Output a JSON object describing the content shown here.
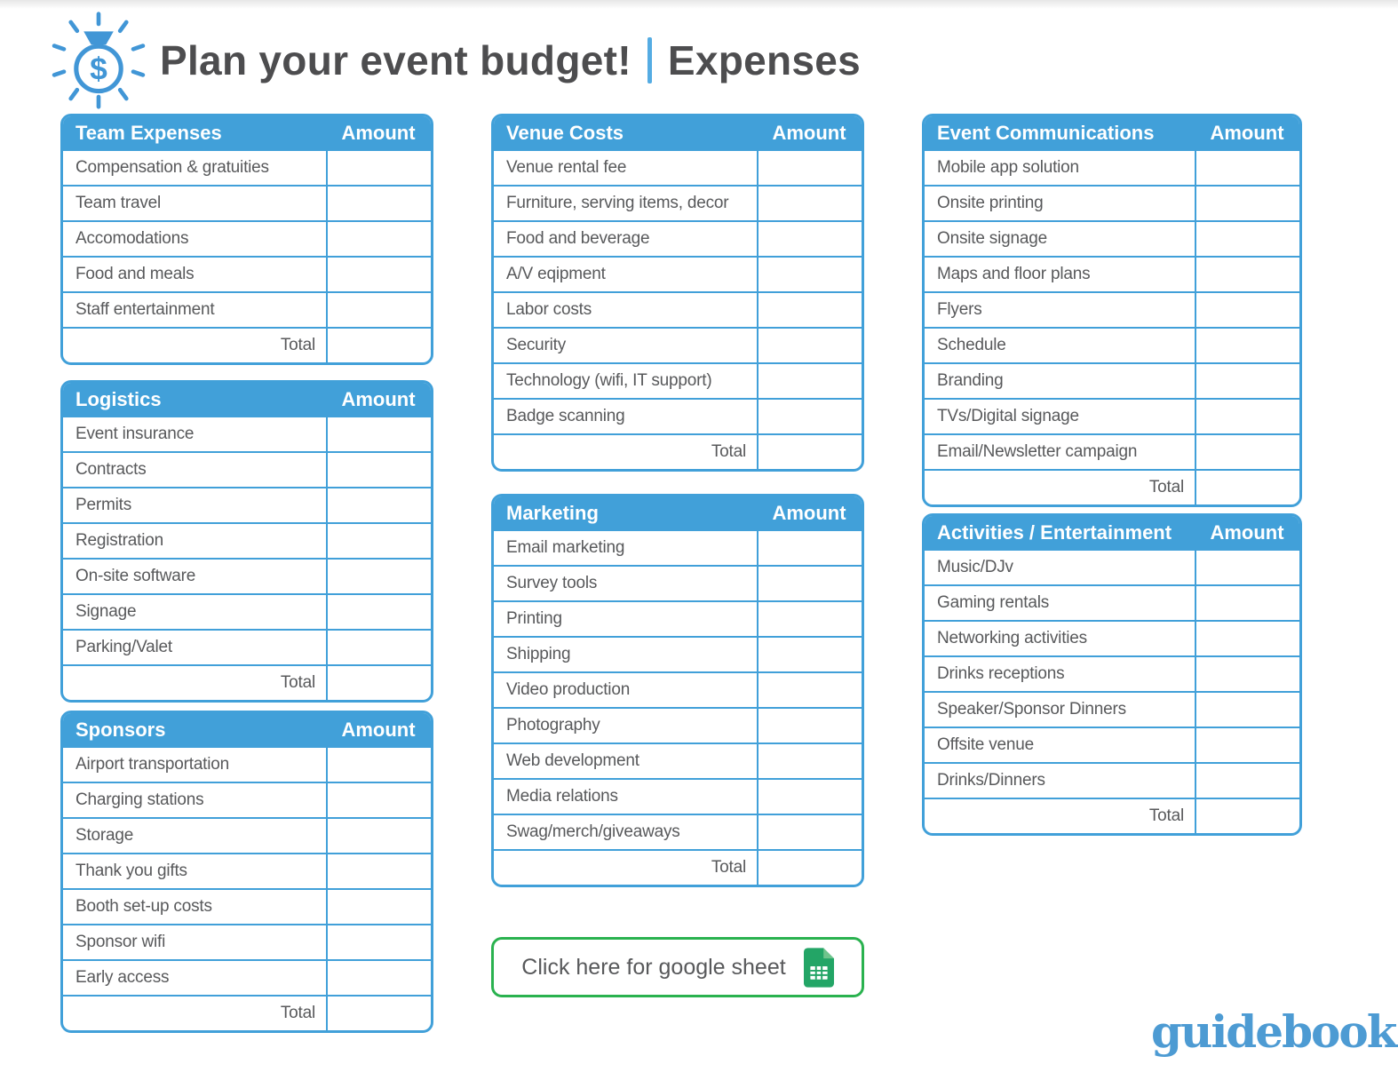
{
  "header": {
    "title": "Plan your event budget!",
    "subtitle": "Expenses",
    "icon": "money-bag-icon"
  },
  "tables": [
    {
      "title": "Team Expenses",
      "amount_header": "Amount",
      "items": [
        "Compensation & gratuities",
        "Team travel",
        "Accomodations",
        "Food and meals",
        "Staff entertainment"
      ],
      "total_label": "Total"
    },
    {
      "title": "Logistics",
      "amount_header": "Amount",
      "items": [
        "Event insurance",
        "Contracts",
        "Permits",
        "Registration",
        "On-site software",
        "Signage",
        "Parking/Valet"
      ],
      "total_label": "Total"
    },
    {
      "title": "Sponsors",
      "amount_header": "Amount",
      "items": [
        "Airport transportation",
        "Charging stations",
        "Storage",
        "Thank you gifts",
        "Booth set-up costs",
        "Sponsor wifi",
        "Early access"
      ],
      "total_label": "Total"
    },
    {
      "title": "Venue Costs",
      "amount_header": "Amount",
      "items": [
        "Venue rental fee",
        "Furniture, serving items, decor",
        "Food and beverage",
        "A/V eqipment",
        "Labor costs",
        "Security",
        "Technology (wifi, IT support)",
        "Badge scanning"
      ],
      "total_label": "Total"
    },
    {
      "title": "Marketing",
      "amount_header": "Amount",
      "items": [
        "Email marketing",
        "Survey tools",
        "Printing",
        "Shipping",
        "Video production",
        "Photography",
        "Web development",
        "Media relations",
        "Swag/merch/giveaways"
      ],
      "total_label": "Total"
    },
    {
      "title": "Event Communications",
      "amount_header": "Amount",
      "items": [
        "Mobile app solution",
        "Onsite printing",
        "Onsite signage",
        "Maps and floor plans",
        "Flyers",
        "Schedule",
        "Branding",
        "TVs/Digital signage",
        "Email/Newsletter campaign"
      ],
      "total_label": "Total"
    },
    {
      "title": "Activities / Entertainment",
      "amount_header": "Amount",
      "items": [
        "Music/DJv",
        "Gaming rentals",
        "Networking activities",
        "Drinks receptions",
        "Speaker/Sponsor Dinners",
        "Offsite venue",
        "Drinks/Dinners"
      ],
      "total_label": "Total"
    }
  ],
  "footer": {
    "button_label": "Click here for google sheet",
    "button_icon": "google-sheets-icon",
    "logo_text": "guidebook"
  },
  "colors": {
    "accent_blue": "#41a0d9",
    "light_blue_divider": "#55ace3",
    "title_text": "#4d4d4f",
    "row_text": "#58595b",
    "button_green": "#2ab24f",
    "sheets_green": "#23a566",
    "sheets_fold_green": "#6fc48c",
    "logo_blue": "#4d9bd3"
  }
}
